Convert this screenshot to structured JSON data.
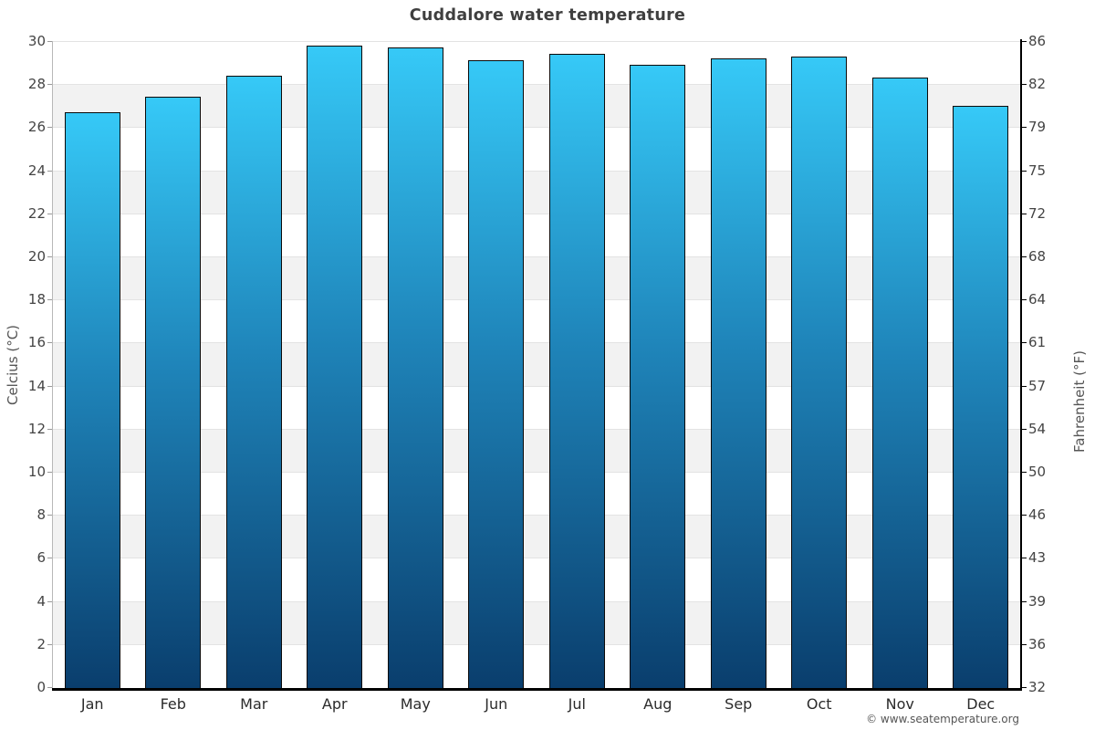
{
  "title": "Cuddalore water temperature",
  "footer": "© www.seatemperature.org",
  "colors": {
    "bar_gradient_top": "#36c9f7",
    "bar_gradient_mid": "#1f85ba",
    "bar_gradient_bottom": "#0a3e6d",
    "bar_border": "#0a0a0a",
    "band_gray": "#f2f2f2",
    "band_white": "#ffffff",
    "gridline": "#e3e3e3",
    "title_text": "#3f3f3f",
    "tick_text": "#444444"
  },
  "chart_data": {
    "type": "bar",
    "title": "Cuddalore water temperature",
    "categories": [
      "Jan",
      "Feb",
      "Mar",
      "Apr",
      "May",
      "Jun",
      "Jul",
      "Aug",
      "Sep",
      "Oct",
      "Nov",
      "Dec"
    ],
    "values": [
      26.7,
      27.4,
      28.4,
      29.8,
      29.7,
      29.1,
      29.4,
      28.9,
      29.2,
      29.3,
      28.3,
      27.0
    ],
    "series_name": "Water temperature (°C)",
    "xlabel": "",
    "ylabel_left": "Celcius (°C)",
    "ylabel_right": "Fahrenheit (°F)",
    "ylim": [
      0,
      30
    ],
    "yticks_celsius": [
      30,
      28,
      26,
      24,
      22,
      20,
      18,
      16,
      14,
      12,
      10,
      8,
      6,
      4,
      2,
      0
    ],
    "yticks_fahrenheit": [
      86,
      82,
      79,
      75,
      72,
      68,
      64,
      61,
      57,
      54,
      50,
      46,
      43,
      39,
      36,
      32
    ],
    "grid": "horizontal gridlines every 2°C with alternating white/gray bands",
    "legend_position": "none"
  }
}
